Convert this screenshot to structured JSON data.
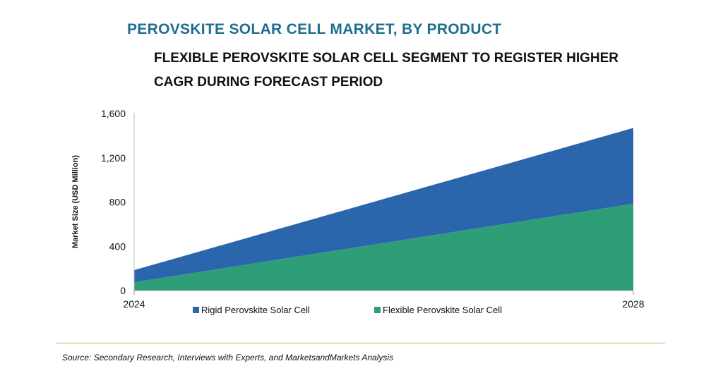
{
  "header": {
    "title": "PEROVSKITE SOLAR CELL MARKET, BY PRODUCT",
    "subtitle": "FLEXIBLE PEROVSKITE SOLAR CELL SEGMENT TO REGISTER HIGHER CAGR DURING FORECAST PERIOD"
  },
  "footer": {
    "source": "Source: Secondary Research, Interviews with Experts, and MarketsandMarkets Analysis"
  },
  "chart_data": {
    "type": "area",
    "stacked": true,
    "x": [
      "2024",
      "2028"
    ],
    "series": [
      {
        "name": "Flexible Perovskite Solar Cell",
        "values": [
          75,
          785
        ],
        "color": "#2e9e78"
      },
      {
        "name": "Rigid Perovskite Solar Cell",
        "values": [
          110,
          685
        ],
        "color": "#2b66ad"
      }
    ],
    "legend_order": [
      "Rigid Perovskite Solar Cell",
      "Flexible Perovskite Solar Cell"
    ],
    "ylabel": "Market Size (USD Million)",
    "xlabel": "",
    "ylim": [
      0,
      1600
    ],
    "yticks": [
      0,
      400,
      800,
      1200,
      1600
    ],
    "ytick_labels": [
      "0",
      "400",
      "800",
      "1,200",
      "1,600"
    ],
    "grid": false,
    "legend_position": "bottom"
  }
}
